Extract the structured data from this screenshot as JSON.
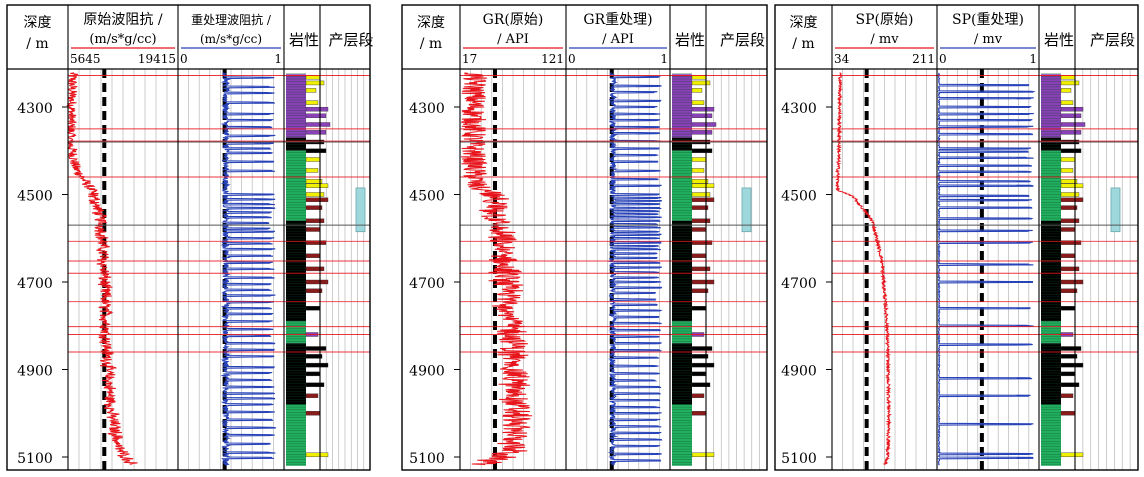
{
  "panels": [
    {
      "depth_header": "深度",
      "depth_unit": "/ m",
      "tracks": [
        {
          "title": "原始波阻抗 /",
          "unit": "(m/s*g/cc)",
          "min_label": "5645",
          "max_label": "19415"
        },
        {
          "title": "重处理波阻抗 /",
          "unit": "(m/s*g/cc)",
          "min_label": "0",
          "max_label": "1"
        }
      ],
      "lith_header": "岩性",
      "zone_header": "产层段"
    },
    {
      "depth_header": "深度",
      "depth_unit": "/ m",
      "tracks": [
        {
          "title": "GR(原始)",
          "unit": "/ API",
          "min_label": "17",
          "max_label": "121"
        },
        {
          "title": "GR重处理)",
          "unit": "/ API",
          "min_label": "0",
          "max_label": "1"
        }
      ],
      "lith_header": "岩性",
      "zone_header": "产层段"
    },
    {
      "depth_header": "深度",
      "depth_unit": "/ m",
      "tracks": [
        {
          "title": "SP(原始)",
          "unit": "/ mv",
          "min_label": "34",
          "max_label": "211"
        },
        {
          "title": "SP(重处理)",
          "unit": "/ mv",
          "min_label": "0",
          "max_label": "1"
        }
      ],
      "lith_header": "岩性",
      "zone_header": "产层段"
    }
  ],
  "chart_data": {
    "type": "line",
    "depth_axis": {
      "ticks": [
        4300,
        4500,
        4700,
        4900,
        5100
      ],
      "tick_labels": [
        "4300",
        "4500",
        "4700",
        "4900",
        "5100"
      ],
      "range": [
        4220,
        5120
      ],
      "unit": "m"
    },
    "colors": {
      "original": "#e8141c",
      "reprocessed": "#2842b8",
      "dashed_line": "#000000",
      "red_marker": "#e8141c",
      "grid": "#999999",
      "zone": "#9fd8dc",
      "lith_green": "#22b060",
      "lith_purple": "#8a40b8",
      "lith_yellow": "#f0f000",
      "lith_darkred": "#8b1a1a",
      "lith_black": "#000000"
    },
    "red_marker_depths": [
      4228,
      4350,
      4378,
      4460,
      4607,
      4652,
      4680,
      4745,
      4802,
      4820,
      4860
    ],
    "gray_marker_depths": [
      4380,
      4570
    ],
    "productive_zone": [
      4485,
      4585
    ],
    "lithology": [
      {
        "top": 4225,
        "base": 4370,
        "type": "sandstone-shale",
        "color": "purple"
      },
      {
        "top": 4370,
        "base": 4400,
        "type": "mudstone",
        "color": "black"
      },
      {
        "top": 4400,
        "base": 4560,
        "type": "sandstone",
        "color": "green"
      },
      {
        "top": 4560,
        "base": 4790,
        "type": "mudstone",
        "color": "black"
      },
      {
        "top": 4790,
        "base": 4840,
        "type": "sandstone",
        "color": "green"
      },
      {
        "top": 4840,
        "base": 4980,
        "type": "mudstone",
        "color": "black"
      },
      {
        "top": 4980,
        "base": 5120,
        "type": "sandstone",
        "color": "green"
      }
    ],
    "series": [
      {
        "name": "原始波阻抗",
        "panel": 0,
        "track": 0,
        "x_range": [
          5645,
          19415
        ],
        "profile": [
          [
            4225,
            6200
          ],
          [
            4380,
            5950
          ],
          [
            4440,
            6600
          ],
          [
            4490,
            8600
          ],
          [
            4560,
            9800
          ],
          [
            4700,
            10200
          ],
          [
            4850,
            10500
          ],
          [
            4990,
            11000
          ],
          [
            5080,
            12000
          ],
          [
            5120,
            13800
          ]
        ],
        "noise": 0.05
      },
      {
        "name": "GR(原始)",
        "panel": 1,
        "track": 0,
        "x_range": [
          17,
          121
        ],
        "profile": [
          [
            4225,
            31
          ],
          [
            4400,
            30
          ],
          [
            4480,
            32
          ],
          [
            4500,
            47
          ],
          [
            4600,
            56
          ],
          [
            4700,
            62
          ],
          [
            4800,
            68
          ],
          [
            4900,
            70
          ],
          [
            5000,
            72
          ],
          [
            5080,
            70
          ],
          [
            5120,
            40
          ]
        ],
        "noise": 0.12
      },
      {
        "name": "SP(原始)",
        "panel": 2,
        "track": 0,
        "x_range": [
          34,
          211
        ],
        "profile": [
          [
            4225,
            48
          ],
          [
            4380,
            46
          ],
          [
            4490,
            43
          ],
          [
            4505,
            70
          ],
          [
            4560,
            102
          ],
          [
            4650,
            118
          ],
          [
            4800,
            127
          ],
          [
            5000,
            130
          ],
          [
            5100,
            128
          ],
          [
            5120,
            122
          ]
        ],
        "noise": 0.015
      },
      {
        "name": "重处理波阻抗",
        "panel": 0,
        "track": 1,
        "x_range": [
          0,
          1
        ],
        "baseline": 0.45,
        "spike_value": 0.92,
        "spike_depths": [
          4233,
          4254,
          4268,
          4290,
          4316,
          4330,
          4346,
          4366,
          4383,
          4395,
          4405,
          4425,
          4446,
          4500,
          4511,
          4522,
          4531,
          4541,
          4552,
          4565,
          4578,
          4585,
          4600,
          4612,
          4625,
          4640,
          4656,
          4670,
          4690,
          4705,
          4718,
          4731,
          4746,
          4760,
          4773,
          4790,
          4808,
          4823,
          4840,
          4855,
          4870,
          4895,
          4908,
          4924,
          4940,
          4955,
          4966,
          4980,
          4997,
          5015,
          5033,
          5050,
          5070,
          5090,
          5102
        ]
      },
      {
        "name": "GR重处理)",
        "panel": 1,
        "track": 1,
        "x_range": [
          0,
          1
        ],
        "baseline": 0.45,
        "spike_value": 0.92,
        "spike_depths": [
          4231,
          4252,
          4266,
          4286,
          4300,
          4316,
          4330,
          4346,
          4360,
          4378,
          4395,
          4410,
          4425,
          4446,
          4465,
          4480,
          4500,
          4508,
          4515,
          4522,
          4531,
          4538,
          4545,
          4552,
          4560,
          4568,
          4575,
          4585,
          4592,
          4600,
          4610,
          4618,
          4625,
          4635,
          4645,
          4656,
          4667,
          4678,
          4690,
          4700,
          4713,
          4725,
          4740,
          4752,
          4765,
          4780,
          4794,
          4810,
          4825,
          4840,
          4856,
          4873,
          4892,
          4909,
          4925,
          4940,
          4955,
          4970,
          4986,
          5000,
          5015,
          5030,
          5045,
          5060,
          5075,
          5093,
          5108
        ]
      },
      {
        "name": "SP(重处理)",
        "panel": 2,
        "track": 1,
        "x_range": [
          0,
          1
        ],
        "baseline": 0.02,
        "spike_value": 0.95,
        "spike_depths": [
          4250,
          4265,
          4280,
          4300,
          4316,
          4330,
          4345,
          4362,
          4395,
          4402,
          4416,
          4434,
          4448,
          4470,
          4480,
          4503,
          4513,
          4530,
          4555,
          4583,
          4610,
          4660,
          4700,
          4760,
          4800,
          4843,
          4920,
          4960,
          5025,
          5093,
          5102
        ]
      }
    ]
  }
}
